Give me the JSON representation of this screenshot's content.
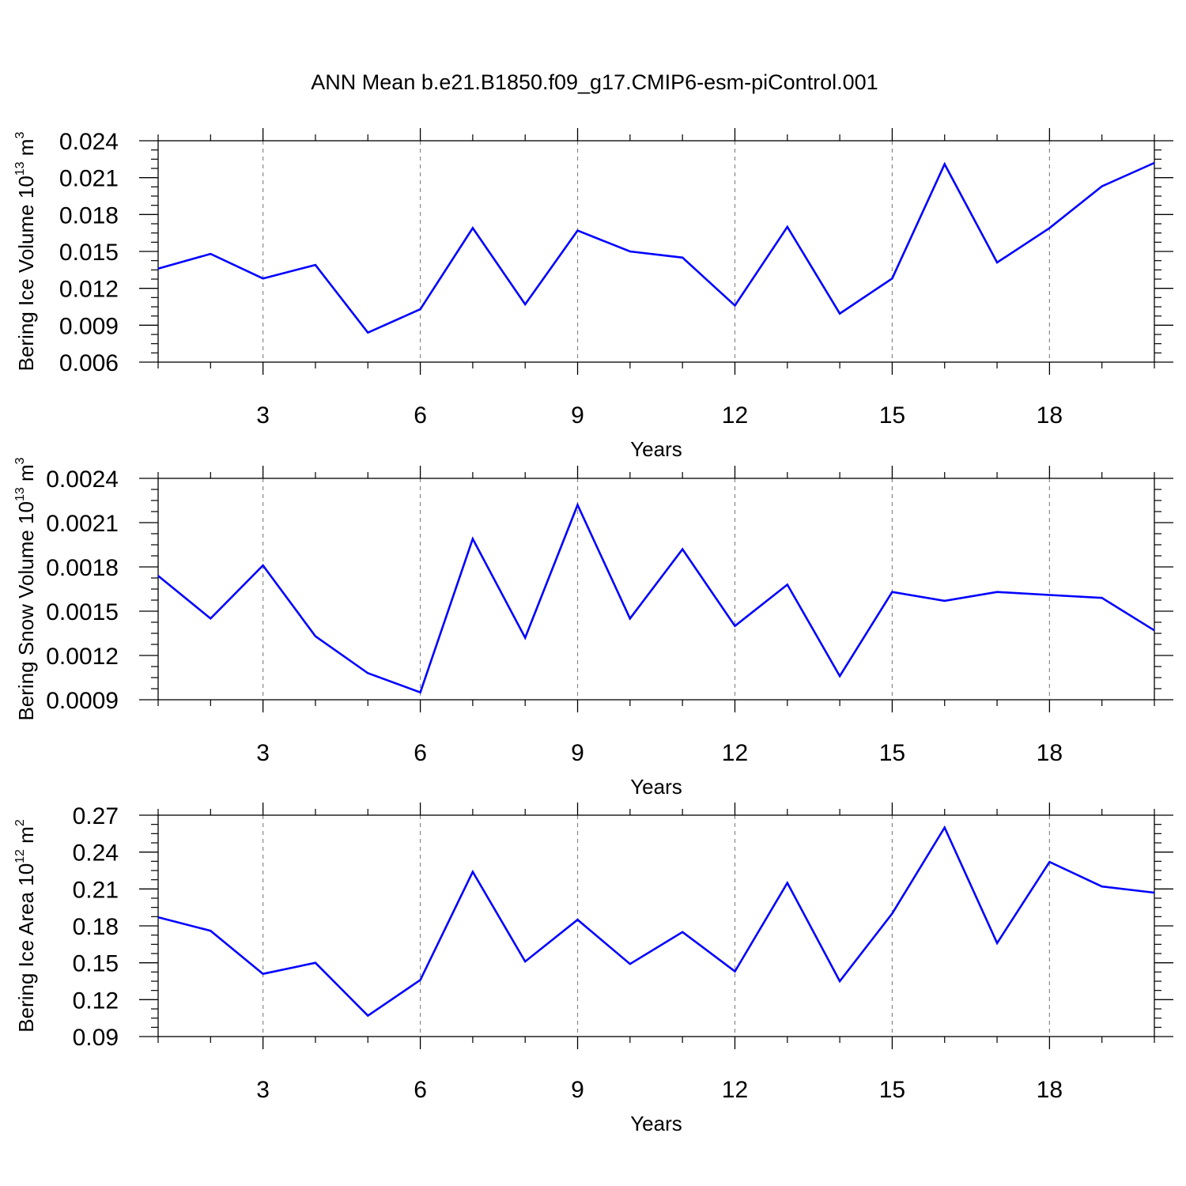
{
  "title": "ANN Mean b.e21.B1850.f09_g17.CMIP6-esm-piControl.001",
  "colors": {
    "line": "#0000ff",
    "axes": "#000000",
    "grid": "#888888",
    "background": "#ffffff"
  },
  "chart_data": [
    {
      "type": "line",
      "title": "",
      "xlabel": "Years",
      "ylabel": {
        "prefix": "Bering Ice Volume 10",
        "exponent": "13",
        "unit": " m",
        "unit_exponent": "3"
      },
      "xlim": [
        1,
        20
      ],
      "ylim": [
        0.006,
        0.024
      ],
      "x_ticks": [
        3,
        6,
        9,
        12,
        15,
        18
      ],
      "x_tick_labels": [
        "3",
        "6",
        "9",
        "12",
        "15",
        "18"
      ],
      "y_ticks": [
        0.006,
        0.009,
        0.012,
        0.015,
        0.018,
        0.021,
        0.024
      ],
      "y_tick_labels": [
        "0.006",
        "0.009",
        "0.012",
        "0.015",
        "0.018",
        "0.021",
        "0.024"
      ],
      "grid": "vertical dashed at major x ticks",
      "series": [
        {
          "name": "Bering Ice Volume",
          "x": [
            1,
            2,
            3,
            4,
            5,
            6,
            7,
            8,
            9,
            10,
            11,
            12,
            13,
            14,
            15,
            16,
            17,
            18,
            19,
            20
          ],
          "values": [
            0.0136,
            0.0148,
            0.0128,
            0.0139,
            0.0084,
            0.0103,
            0.0169,
            0.0107,
            0.0167,
            0.015,
            0.0145,
            0.0106,
            0.017,
            0.00995,
            0.0128,
            0.0221,
            0.0141,
            0.0169,
            0.0203,
            0.0222
          ]
        }
      ]
    },
    {
      "type": "line",
      "title": "",
      "xlabel": "Years",
      "ylabel": {
        "prefix": "Bering Snow Volume 10",
        "exponent": "13",
        "unit": " m",
        "unit_exponent": "3"
      },
      "xlim": [
        1,
        20
      ],
      "ylim": [
        0.0009,
        0.0024
      ],
      "x_ticks": [
        3,
        6,
        9,
        12,
        15,
        18
      ],
      "x_tick_labels": [
        "3",
        "6",
        "9",
        "12",
        "15",
        "18"
      ],
      "y_ticks": [
        0.0009,
        0.0012,
        0.0015,
        0.0018,
        0.0021,
        0.0024
      ],
      "y_tick_labels": [
        "0.0009",
        "0.0012",
        "0.0015",
        "0.0018",
        "0.0021",
        "0.0024"
      ],
      "grid": "vertical dashed at major x ticks",
      "series": [
        {
          "name": "Bering Snow Volume",
          "x": [
            1,
            2,
            3,
            4,
            5,
            6,
            7,
            8,
            9,
            10,
            11,
            12,
            13,
            14,
            15,
            16,
            17,
            18,
            19,
            20
          ],
          "values": [
            0.00174,
            0.00145,
            0.00181,
            0.00133,
            0.00108,
            0.00095,
            0.00199,
            0.00132,
            0.00222,
            0.00145,
            0.00192,
            0.0014,
            0.00168,
            0.00106,
            0.00163,
            0.00157,
            0.00163,
            0.00161,
            0.00159,
            0.00137
          ]
        }
      ]
    },
    {
      "type": "line",
      "title": "",
      "xlabel": "Years",
      "ylabel": {
        "prefix": "Bering Ice Area 10",
        "exponent": "12",
        "unit": " m",
        "unit_exponent": "2"
      },
      "xlim": [
        1,
        20
      ],
      "ylim": [
        0.09,
        0.27
      ],
      "x_ticks": [
        3,
        6,
        9,
        12,
        15,
        18
      ],
      "x_tick_labels": [
        "3",
        "6",
        "9",
        "12",
        "15",
        "18"
      ],
      "y_ticks": [
        0.09,
        0.12,
        0.15,
        0.18,
        0.21,
        0.24,
        0.27
      ],
      "y_tick_labels": [
        "0.09",
        "0.12",
        "0.15",
        "0.18",
        "0.21",
        "0.24",
        "0.27"
      ],
      "grid": "vertical dashed at major x ticks",
      "series": [
        {
          "name": "Bering Ice Area",
          "x": [
            1,
            2,
            3,
            4,
            5,
            6,
            7,
            8,
            9,
            10,
            11,
            12,
            13,
            14,
            15,
            16,
            17,
            18,
            19,
            20
          ],
          "values": [
            0.187,
            0.176,
            0.141,
            0.15,
            0.107,
            0.136,
            0.224,
            0.151,
            0.185,
            0.149,
            0.175,
            0.143,
            0.215,
            0.135,
            0.19,
            0.26,
            0.166,
            0.232,
            0.212,
            0.207
          ]
        }
      ]
    }
  ]
}
